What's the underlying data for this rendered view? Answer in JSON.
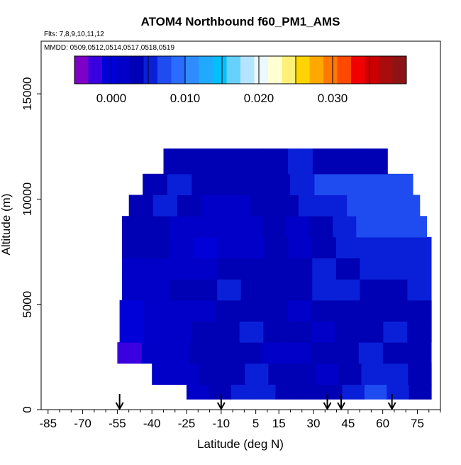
{
  "chart_data": {
    "type": "heatmap",
    "title": "ATOM4 Northbound f60_PM1_AMS",
    "flights_label": "Flts: 7,8,9,10,11,12",
    "dates_label": "MMDD: 0509,0512,0514,0517,0518,0519",
    "xlabel": "Latitude (deg N)",
    "ylabel": "Altitude (m)",
    "xlim": [
      -88,
      85
    ],
    "ylim": [
      0,
      17500
    ],
    "x_ticks": [
      -85,
      -70,
      -55,
      -40,
      -25,
      -10,
      5,
      15,
      30,
      45,
      60,
      75
    ],
    "x_minor_ticks": [
      -80,
      -75,
      -65,
      -60,
      -50,
      -45,
      -35,
      -30,
      -20,
      -15,
      -5,
      0,
      10,
      20,
      25,
      35,
      40,
      50,
      55,
      65,
      70,
      80,
      85
    ],
    "y_ticks": [
      0,
      5000,
      10000,
      15000
    ],
    "colorbar": {
      "range": [
        -0.005,
        0.04
      ],
      "ticks": [
        0.0,
        0.01,
        0.02,
        0.03
      ],
      "tick_labels": [
        "0.000",
        "0.010",
        "0.020",
        "0.030"
      ],
      "colors": [
        "#7d00c8",
        "#3a00e0",
        "#0000d8",
        "#0000c8",
        "#0000b4",
        "#0a20d8",
        "#1e4cf0",
        "#2a6cff",
        "#2f8cff",
        "#20aaff",
        "#00c0ff",
        "#66d0ff",
        "#b4e4ff",
        "#eaf8ff",
        "#ffffd4",
        "#fff07a",
        "#ffd400",
        "#ffa800",
        "#ff7800",
        "#ff4800",
        "#f00000",
        "#cc0000",
        "#a80c0c",
        "#8c1414"
      ]
    },
    "arrows_latitude": [
      -54,
      -10,
      36,
      42,
      64
    ],
    "band_bins": [
      {
        "alt_low": 500,
        "alt_high": 1200,
        "x_start": -25,
        "x_end": 81,
        "values": [
          0.002,
          0.004,
          0.005,
          0.006,
          0.004,
          0.003,
          0.004,
          0.006,
          0.007,
          0.005,
          0.004
        ]
      },
      {
        "alt_low": 1200,
        "alt_high": 2200,
        "x_start": -40,
        "x_end": 81,
        "values": [
          0.001,
          0.002,
          0.003,
          0.004,
          0.005,
          0.004,
          0.003,
          0.002,
          0.004,
          0.006,
          0.005,
          0.004
        ]
      },
      {
        "alt_low": 2200,
        "alt_high": 3200,
        "x_start": -55,
        "x_end": 81,
        "values": [
          -0.002,
          0.001,
          0.002,
          0.003,
          0.004,
          0.003,
          0.002,
          0.001,
          0.003,
          0.004,
          0.005,
          0.003,
          0.004
        ]
      },
      {
        "alt_low": 3200,
        "alt_high": 4200,
        "x_start": -54,
        "x_end": 81,
        "values": [
          0.0,
          0.001,
          0.002,
          0.003,
          0.004,
          0.005,
          0.004,
          0.003,
          0.002,
          0.003,
          0.004,
          0.005,
          0.004
        ]
      },
      {
        "alt_low": 4200,
        "alt_high": 5200,
        "x_start": -54,
        "x_end": 81,
        "values": [
          0.0,
          0.001,
          0.001,
          0.002,
          0.004,
          0.004,
          0.003,
          0.002,
          0.003,
          0.004,
          0.004,
          0.003,
          0.004
        ]
      },
      {
        "alt_low": 5200,
        "alt_high": 6200,
        "x_start": -53,
        "x_end": 81,
        "values": [
          0.001,
          0.002,
          0.003,
          0.004,
          0.005,
          0.004,
          0.004,
          0.004,
          0.005,
          0.005,
          0.004,
          0.004,
          0.005
        ]
      },
      {
        "alt_low": 6200,
        "alt_high": 7200,
        "x_start": -53,
        "x_end": 81,
        "values": [
          0.002,
          0.002,
          0.001,
          0.002,
          0.003,
          0.003,
          0.004,
          0.004,
          0.005,
          0.004,
          0.005,
          0.006,
          0.005
        ]
      },
      {
        "alt_low": 7200,
        "alt_high": 8200,
        "x_start": -53,
        "x_end": 81,
        "values": [
          0.003,
          0.003,
          0.001,
          0.0,
          0.001,
          0.002,
          0.003,
          0.002,
          0.004,
          0.005,
          0.006,
          0.005,
          0.006
        ]
      },
      {
        "alt_low": 8200,
        "alt_high": 9200,
        "x_start": -53,
        "x_end": 79,
        "values": [
          0.004,
          0.004,
          0.002,
          0.001,
          0.001,
          0.002,
          0.003,
          0.002,
          0.004,
          0.006,
          0.007,
          0.008,
          0.007
        ]
      },
      {
        "alt_low": 9200,
        "alt_high": 10200,
        "x_start": -50,
        "x_end": 76,
        "values": [
          0.004,
          0.005,
          0.004,
          0.002,
          0.002,
          0.003,
          0.004,
          0.006,
          0.006,
          0.007,
          0.008,
          0.007
        ]
      },
      {
        "alt_low": 10200,
        "alt_high": 11200,
        "x_start": -44,
        "x_end": 73,
        "values": [
          0.004,
          0.005,
          0.004,
          0.003,
          0.004,
          0.004,
          0.005,
          0.007,
          0.008,
          0.008,
          0.007
        ]
      },
      {
        "alt_low": 11200,
        "alt_high": 12400,
        "x_start": -35,
        "x_end": 62,
        "values": [
          0.003,
          0.004,
          0.003,
          0.004,
          0.004,
          0.005,
          0.004,
          0.003,
          0.004
        ]
      }
    ]
  }
}
